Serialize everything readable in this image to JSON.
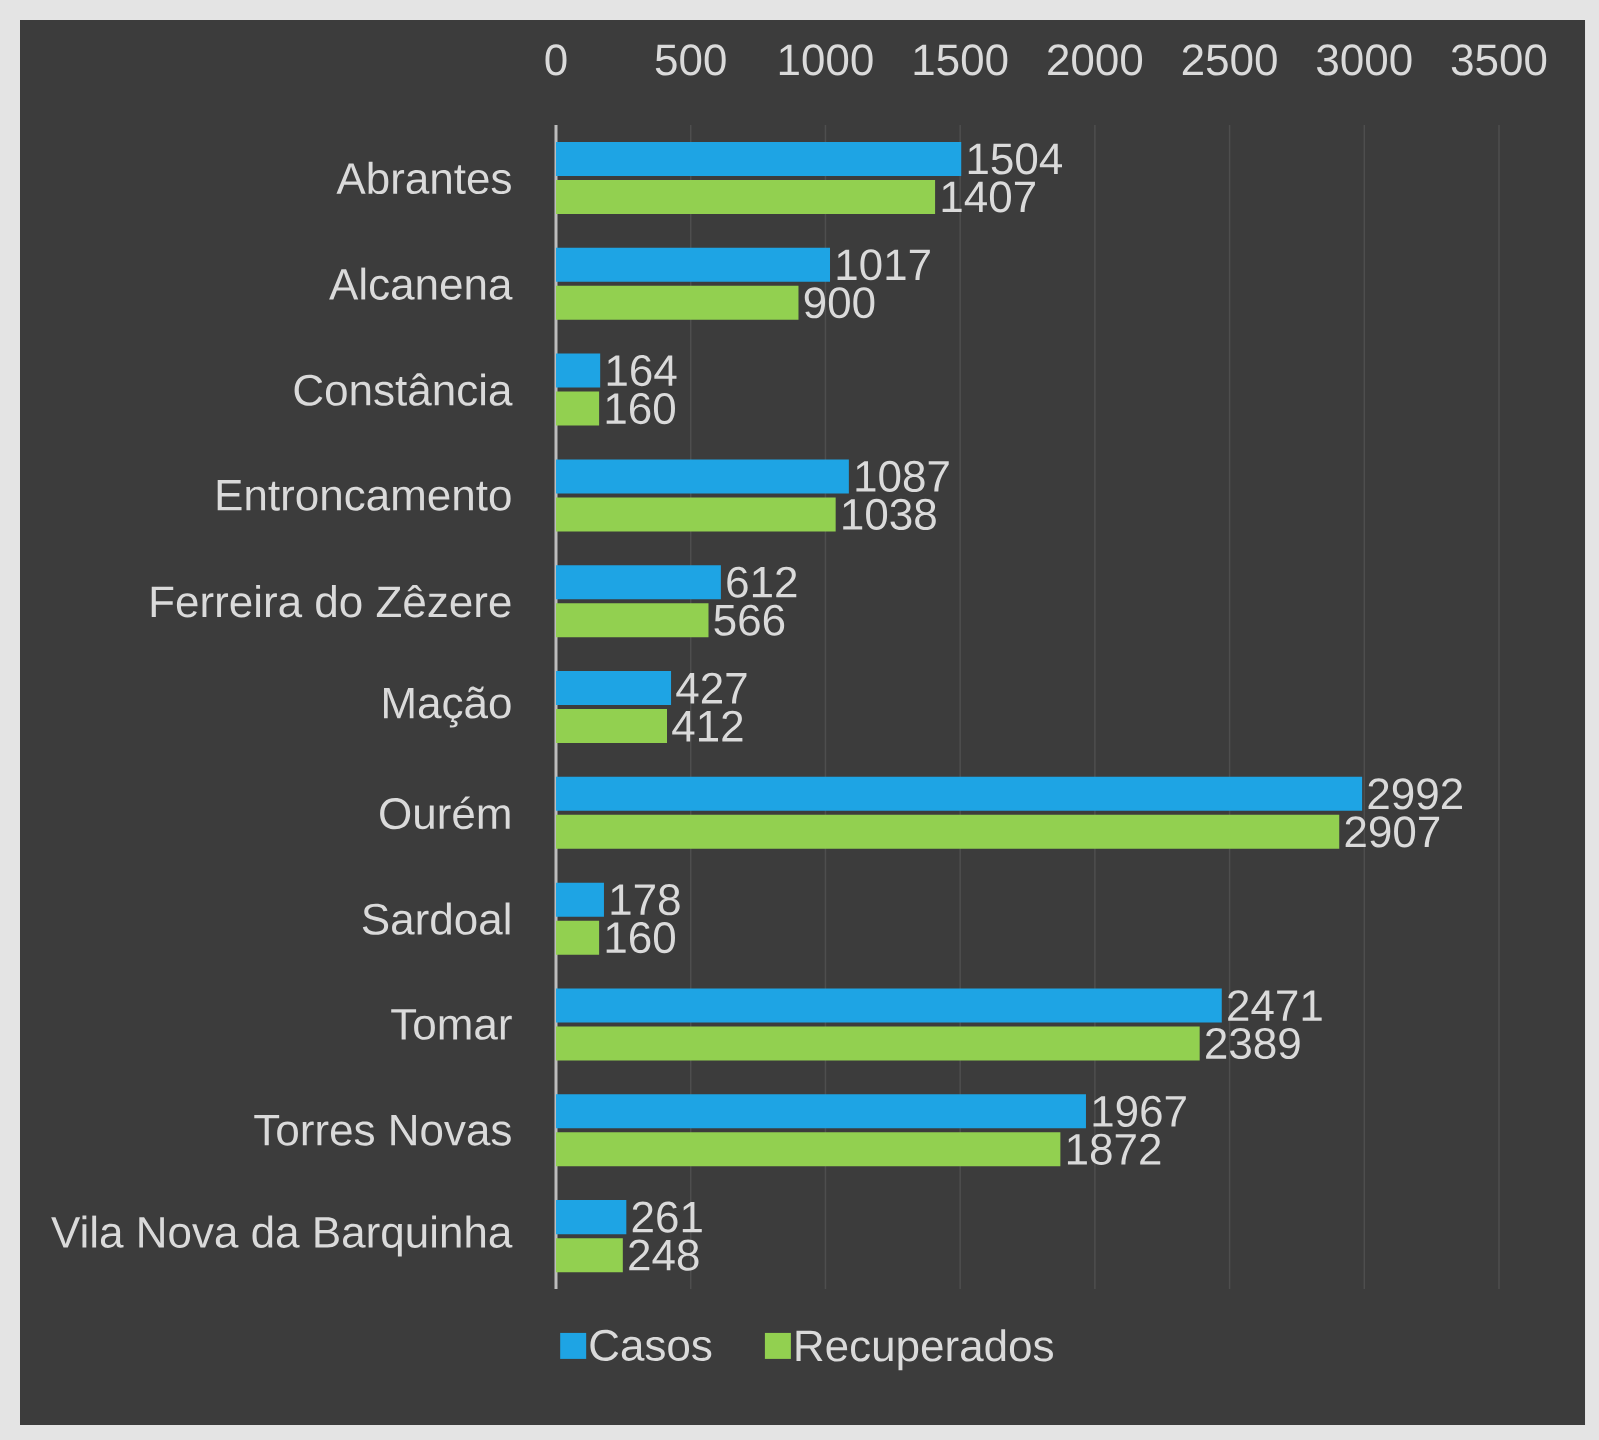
{
  "chart_data": {
    "type": "bar",
    "orientation": "horizontal",
    "categories": [
      "Abrantes",
      "Alcanena",
      "Constância",
      "Entroncamento",
      "Ferreira do Zêzere",
      "Mação",
      "Ourém",
      "Sardoal",
      "Tomar",
      "Torres Novas",
      "Vila Nova da Barquinha"
    ],
    "series": [
      {
        "name": "Casos",
        "color": "#1ea4e4",
        "values": [
          1504,
          1017,
          164,
          1087,
          612,
          427,
          2992,
          178,
          2471,
          1967,
          261
        ]
      },
      {
        "name": "Recuperados",
        "color": "#92d050",
        "values": [
          1407,
          900,
          160,
          1038,
          566,
          412,
          2907,
          160,
          2389,
          1872,
          248
        ]
      }
    ],
    "xlim": [
      0,
      3500
    ],
    "xticks": [
      0,
      500,
      1000,
      1500,
      2000,
      2500,
      3000,
      3500
    ],
    "grid": "x",
    "legend": "bottom",
    "data_labels": true
  }
}
